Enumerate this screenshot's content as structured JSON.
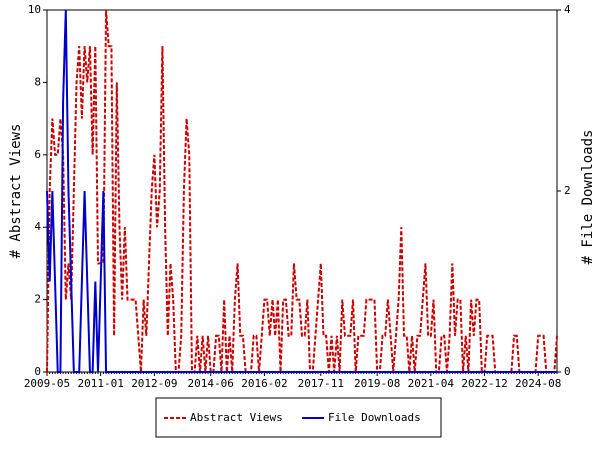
{
  "chart_data": {
    "type": "line",
    "categories": [
      "2009-05",
      null,
      null,
      null,
      null,
      null,
      null,
      null,
      null,
      null,
      null,
      null,
      null,
      null,
      null,
      null,
      null,
      null,
      null,
      null,
      "2011-01",
      null,
      null,
      null,
      null,
      null,
      null,
      null,
      null,
      null,
      null,
      null,
      null,
      null,
      null,
      null,
      null,
      null,
      null,
      null,
      "2012-09",
      null,
      null,
      null,
      null,
      null,
      null,
      null,
      null,
      null,
      null,
      null,
      null,
      null,
      null,
      null,
      null,
      null,
      null,
      null,
      null,
      "2014-06",
      null,
      null,
      null,
      null,
      null,
      null,
      null,
      null,
      null,
      null,
      null,
      null,
      null,
      null,
      null,
      null,
      null,
      null,
      null,
      "2016-02",
      null,
      null,
      null,
      null,
      null,
      null,
      null,
      null,
      null,
      null,
      null,
      null,
      null,
      null,
      null,
      null,
      null,
      null,
      null,
      null,
      "2017-11",
      null,
      null,
      null,
      null,
      null,
      null,
      null,
      null,
      null,
      null,
      null,
      null,
      null,
      null,
      null,
      null,
      null,
      null,
      null,
      null,
      "2019-08",
      null,
      null,
      null,
      null,
      null,
      null,
      null,
      null,
      null,
      null,
      null,
      null,
      null,
      null,
      null,
      null,
      null,
      null,
      null,
      "2021-04",
      null,
      null,
      null,
      null,
      null,
      null,
      null,
      null,
      null,
      null,
      null,
      null,
      null,
      null,
      null,
      null,
      null,
      null,
      null,
      "2022-12",
      null,
      null,
      null,
      null,
      null,
      null,
      null,
      null,
      null,
      null,
      null,
      null,
      null,
      null,
      null,
      null,
      null,
      null,
      null,
      "2024-08",
      null,
      null,
      null,
      null,
      null,
      null,
      null
    ],
    "series": [
      {
        "name": "Abstract Views",
        "color": "#cc0000",
        "axis": "y",
        "values": [
          0,
          5,
          7,
          6,
          6,
          7,
          6,
          2,
          3,
          2,
          5,
          8,
          9,
          7,
          9,
          8,
          9,
          6,
          9,
          3,
          3,
          3,
          10,
          9,
          9,
          1,
          8,
          4,
          2,
          4,
          2,
          2,
          2,
          2,
          1,
          0,
          2,
          1,
          3,
          5,
          6,
          4,
          5,
          9,
          4,
          1,
          3,
          2,
          0,
          0,
          1,
          5,
          7,
          6,
          0,
          0,
          1,
          0,
          1,
          0,
          1,
          0,
          0,
          1,
          1,
          0,
          2,
          0,
          1,
          0,
          2,
          3,
          1,
          1,
          0,
          0,
          0,
          1,
          1,
          0,
          1,
          2,
          2,
          1,
          2,
          1,
          2,
          0,
          2,
          2,
          1,
          1,
          3,
          2,
          2,
          1,
          1,
          2,
          0,
          0,
          1,
          2,
          3,
          1,
          1,
          0,
          1,
          0,
          1,
          0,
          2,
          1,
          1,
          1,
          2,
          0,
          1,
          1,
          1,
          2,
          2,
          2,
          2,
          0,
          0,
          1,
          1,
          2,
          1,
          0,
          1,
          2,
          4,
          1,
          1,
          0,
          1,
          0,
          1,
          1,
          2,
          3,
          1,
          1,
          2,
          0,
          0,
          1,
          1,
          0,
          1,
          3,
          1,
          2,
          2,
          0,
          1,
          0,
          2,
          1,
          2,
          2,
          0,
          0,
          1,
          1,
          1,
          0,
          0,
          0,
          0,
          0,
          0,
          0,
          1,
          1,
          0,
          0,
          0,
          0,
          0,
          0,
          0,
          1,
          1,
          1,
          0,
          0,
          0,
          0,
          1
        ]
      },
      {
        "name": "File Downloads",
        "color": "#0000cc",
        "axis": "y2",
        "values": [
          2,
          1,
          2,
          1,
          0,
          0,
          3,
          4,
          2,
          1,
          0,
          0,
          0,
          1,
          2,
          1,
          0,
          0,
          1,
          0,
          1,
          2,
          0,
          0,
          0,
          0,
          0,
          0,
          0,
          0,
          0,
          0,
          0,
          0,
          0,
          0,
          0,
          0,
          0,
          0,
          0,
          0,
          0,
          0,
          0,
          0,
          0,
          0,
          0,
          0,
          0,
          0,
          0,
          0,
          0,
          0,
          0,
          0,
          0,
          0,
          0,
          0,
          0,
          0,
          0,
          0,
          0,
          0,
          0,
          0,
          0,
          0,
          0,
          0,
          0,
          0,
          0,
          0,
          0,
          0,
          0,
          0,
          0,
          0,
          0,
          0,
          0,
          0,
          0,
          0,
          0,
          0,
          0,
          0,
          0,
          0,
          0,
          0,
          0,
          0,
          0,
          0,
          0,
          0,
          0,
          0,
          0,
          0,
          0,
          0,
          0,
          0,
          0,
          0,
          0,
          0,
          0,
          0,
          0,
          0,
          0,
          0,
          0,
          0,
          0,
          0,
          0,
          0,
          0,
          0,
          0,
          0,
          0,
          0,
          0,
          0,
          0,
          0,
          0,
          0,
          0,
          0,
          0,
          0,
          0,
          0,
          0,
          0,
          0,
          0,
          0,
          0,
          0,
          0,
          0,
          0,
          0,
          0,
          0,
          0,
          0,
          0,
          0,
          0,
          0,
          0,
          0,
          0,
          0,
          0,
          0,
          0,
          0,
          0,
          0,
          0,
          0,
          0,
          0,
          0,
          0,
          0,
          0,
          0,
          0,
          0,
          0,
          0,
          0,
          0,
          0
        ]
      }
    ],
    "ylabel": "# Abstract Views",
    "y2label": "# File Downloads",
    "ylim": [
      0,
      10
    ],
    "yticks": [
      0,
      2,
      4,
      6,
      8,
      10
    ],
    "y2lim": [
      0,
      4
    ],
    "y2ticks": [
      0,
      2,
      4
    ],
    "legend": "bottom"
  }
}
